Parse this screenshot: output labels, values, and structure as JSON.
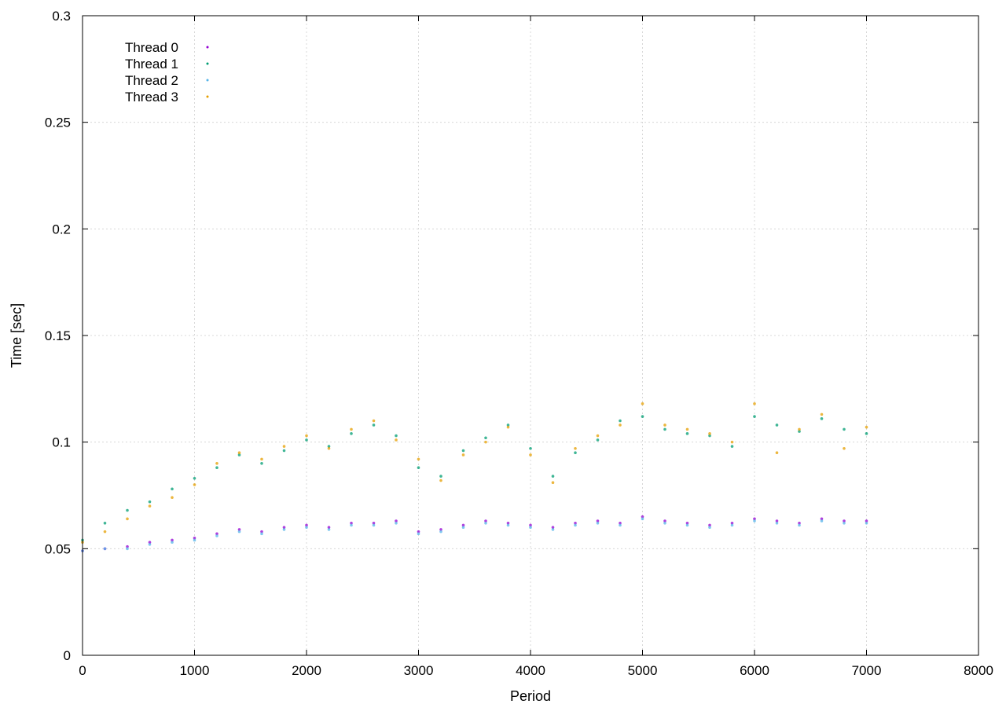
{
  "chart_data": {
    "type": "scatter",
    "title": "",
    "xlabel": "Period",
    "ylabel": "Time [sec]",
    "xlim": [
      0,
      8000
    ],
    "ylim": [
      0,
      0.3
    ],
    "xticks": [
      "0",
      "1000",
      "2000",
      "3000",
      "4000",
      "5000",
      "6000",
      "7000",
      "8000"
    ],
    "yticks": [
      "0",
      "0.05",
      "0.1",
      "0.15",
      "0.2",
      "0.25",
      "0.3"
    ],
    "grid": true,
    "legend_position": "top-left",
    "series": [
      {
        "name": "Thread 0",
        "color": "#9400d3",
        "points": [
          [
            0,
            0.049
          ],
          [
            200,
            0.05
          ],
          [
            400,
            0.051
          ],
          [
            600,
            0.053
          ],
          [
            800,
            0.054
          ],
          [
            1000,
            0.055
          ],
          [
            1200,
            0.057
          ],
          [
            1400,
            0.059
          ],
          [
            1600,
            0.058
          ],
          [
            1800,
            0.06
          ],
          [
            2000,
            0.061
          ],
          [
            2200,
            0.06
          ],
          [
            2400,
            0.062
          ],
          [
            2600,
            0.062
          ],
          [
            2800,
            0.063
          ],
          [
            3000,
            0.058
          ],
          [
            3200,
            0.059
          ],
          [
            3400,
            0.061
          ],
          [
            3600,
            0.063
          ],
          [
            3800,
            0.062
          ],
          [
            4000,
            0.061
          ],
          [
            4200,
            0.06
          ],
          [
            4400,
            0.062
          ],
          [
            4600,
            0.063
          ],
          [
            4800,
            0.062
          ],
          [
            5000,
            0.065
          ],
          [
            5200,
            0.063
          ],
          [
            5400,
            0.062
          ],
          [
            5600,
            0.061
          ],
          [
            5800,
            0.062
          ],
          [
            6000,
            0.064
          ],
          [
            6200,
            0.063
          ],
          [
            6400,
            0.062
          ],
          [
            6600,
            0.064
          ],
          [
            6800,
            0.063
          ],
          [
            7000,
            0.063
          ]
        ]
      },
      {
        "name": "Thread 1",
        "color": "#009e73",
        "points": [
          [
            0,
            0.054
          ],
          [
            200,
            0.062
          ],
          [
            400,
            0.068
          ],
          [
            600,
            0.072
          ],
          [
            800,
            0.078
          ],
          [
            1000,
            0.083
          ],
          [
            1200,
            0.088
          ],
          [
            1400,
            0.094
          ],
          [
            1600,
            0.09
          ],
          [
            1800,
            0.096
          ],
          [
            2000,
            0.101
          ],
          [
            2200,
            0.098
          ],
          [
            2400,
            0.104
          ],
          [
            2600,
            0.108
          ],
          [
            2800,
            0.103
          ],
          [
            3000,
            0.088
          ],
          [
            3200,
            0.084
          ],
          [
            3400,
            0.096
          ],
          [
            3600,
            0.102
          ],
          [
            3800,
            0.108
          ],
          [
            4000,
            0.097
          ],
          [
            4200,
            0.084
          ],
          [
            4400,
            0.095
          ],
          [
            4600,
            0.101
          ],
          [
            4800,
            0.11
          ],
          [
            5000,
            0.112
          ],
          [
            5200,
            0.106
          ],
          [
            5400,
            0.104
          ],
          [
            5600,
            0.103
          ],
          [
            5800,
            0.098
          ],
          [
            6000,
            0.112
          ],
          [
            6200,
            0.108
          ],
          [
            6400,
            0.105
          ],
          [
            6600,
            0.111
          ],
          [
            6800,
            0.106
          ],
          [
            7000,
            0.104
          ]
        ]
      },
      {
        "name": "Thread 2",
        "color": "#56b4e9",
        "points": [
          [
            0,
            0.049
          ],
          [
            200,
            0.05
          ],
          [
            400,
            0.05
          ],
          [
            600,
            0.052
          ],
          [
            800,
            0.053
          ],
          [
            1000,
            0.054
          ],
          [
            1200,
            0.056
          ],
          [
            1400,
            0.058
          ],
          [
            1600,
            0.057
          ],
          [
            1800,
            0.059
          ],
          [
            2000,
            0.06
          ],
          [
            2200,
            0.059
          ],
          [
            2400,
            0.061
          ],
          [
            2600,
            0.061
          ],
          [
            2800,
            0.062
          ],
          [
            3000,
            0.057
          ],
          [
            3200,
            0.058
          ],
          [
            3400,
            0.06
          ],
          [
            3600,
            0.062
          ],
          [
            3800,
            0.061
          ],
          [
            4000,
            0.06
          ],
          [
            4200,
            0.059
          ],
          [
            4400,
            0.061
          ],
          [
            4600,
            0.062
          ],
          [
            4800,
            0.061
          ],
          [
            5000,
            0.064
          ],
          [
            5200,
            0.062
          ],
          [
            5400,
            0.061
          ],
          [
            5600,
            0.06
          ],
          [
            5800,
            0.061
          ],
          [
            6000,
            0.063
          ],
          [
            6200,
            0.062
          ],
          [
            6400,
            0.061
          ],
          [
            6600,
            0.063
          ],
          [
            6800,
            0.062
          ],
          [
            7000,
            0.062
          ]
        ]
      },
      {
        "name": "Thread 3",
        "color": "#e69f00",
        "points": [
          [
            0,
            0.053
          ],
          [
            200,
            0.058
          ],
          [
            400,
            0.064
          ],
          [
            600,
            0.07
          ],
          [
            800,
            0.074
          ],
          [
            1000,
            0.08
          ],
          [
            1200,
            0.09
          ],
          [
            1400,
            0.095
          ],
          [
            1600,
            0.092
          ],
          [
            1800,
            0.098
          ],
          [
            2000,
            0.103
          ],
          [
            2200,
            0.097
          ],
          [
            2400,
            0.106
          ],
          [
            2600,
            0.11
          ],
          [
            2800,
            0.101
          ],
          [
            3000,
            0.092
          ],
          [
            3200,
            0.082
          ],
          [
            3400,
            0.094
          ],
          [
            3600,
            0.1
          ],
          [
            3800,
            0.107
          ],
          [
            4000,
            0.094
          ],
          [
            4200,
            0.081
          ],
          [
            4400,
            0.097
          ],
          [
            4600,
            0.103
          ],
          [
            4800,
            0.108
          ],
          [
            5000,
            0.118
          ],
          [
            5200,
            0.108
          ],
          [
            5400,
            0.106
          ],
          [
            5600,
            0.104
          ],
          [
            5800,
            0.1
          ],
          [
            6000,
            0.118
          ],
          [
            6200,
            0.095
          ],
          [
            6400,
            0.106
          ],
          [
            6600,
            0.113
          ],
          [
            6800,
            0.097
          ],
          [
            7000,
            0.107
          ]
        ]
      }
    ]
  }
}
